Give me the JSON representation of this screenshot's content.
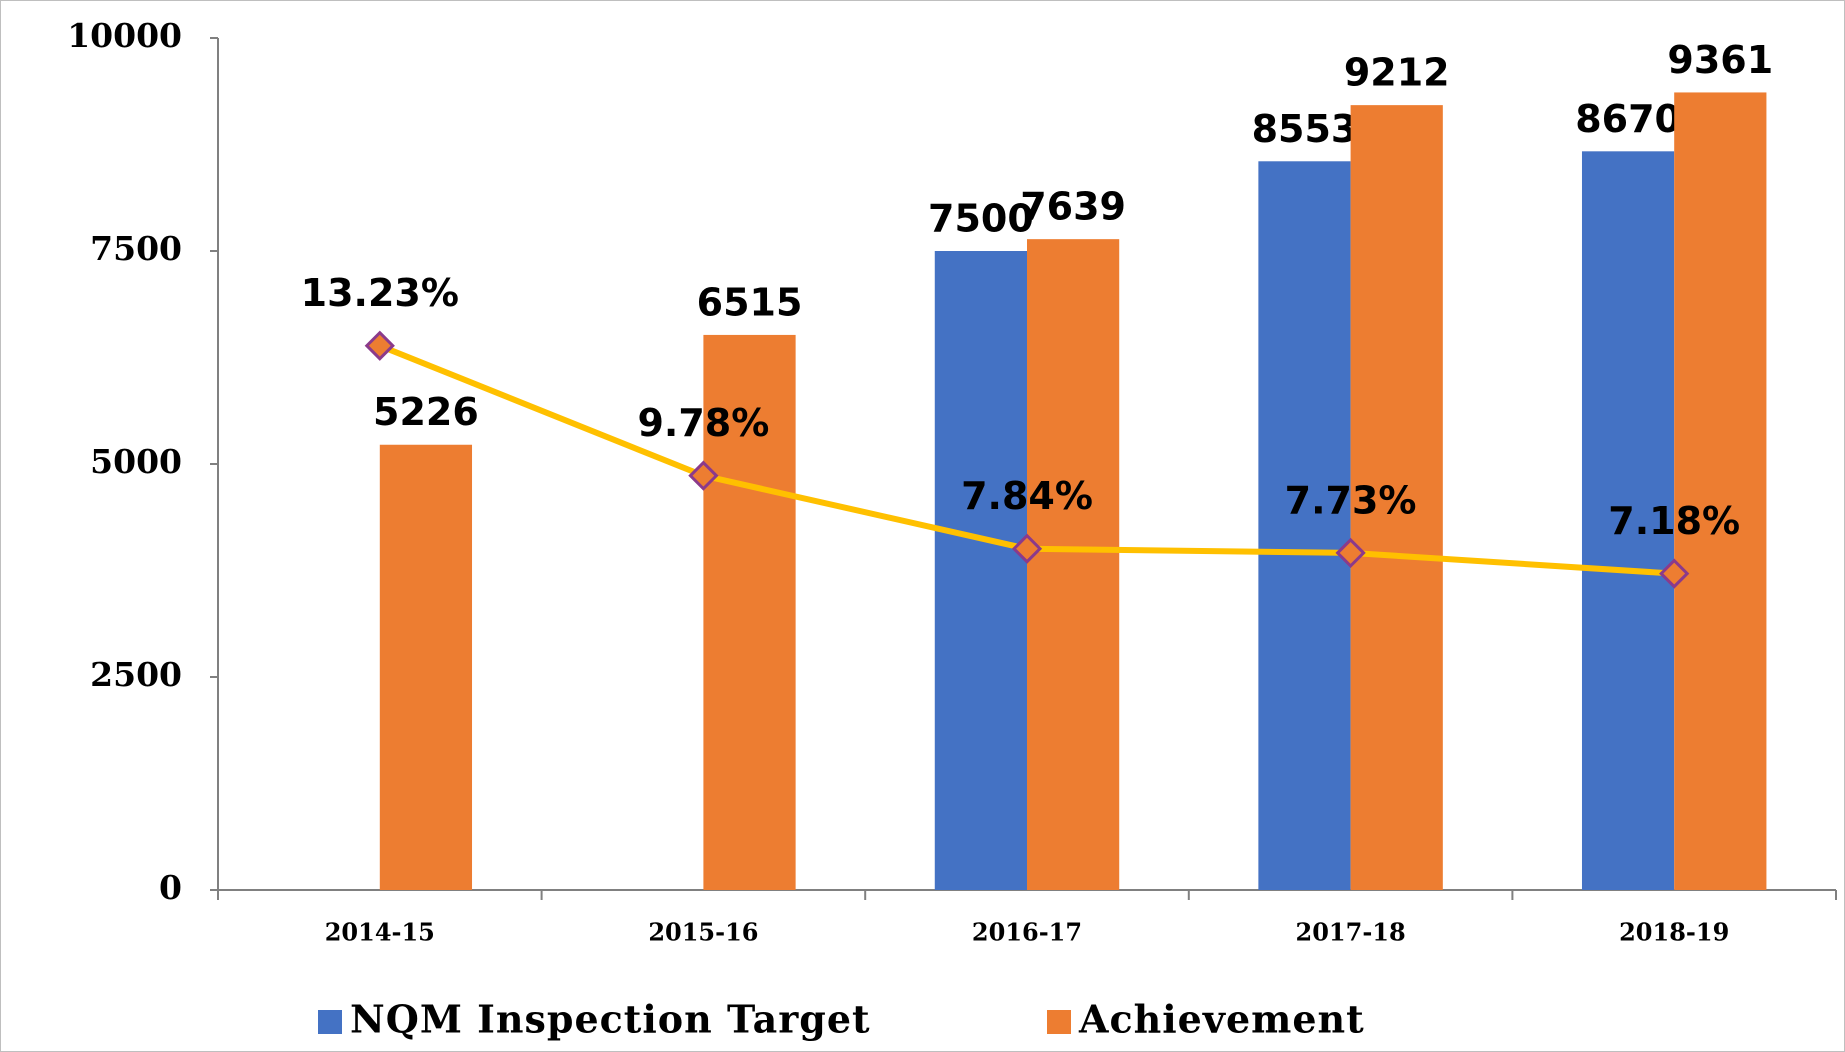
{
  "chart_data": {
    "type": "bar",
    "categories": [
      "2014-15",
      "2015-16",
      "2016-17",
      "2017-18",
      "2018-19"
    ],
    "series": [
      {
        "name": "NQM Inspection Target",
        "color": "#4472c4",
        "values": [
          null,
          null,
          7500,
          8553,
          8670
        ]
      },
      {
        "name": "Achievement",
        "color": "#ed7d31",
        "values": [
          5226,
          6515,
          7639,
          9212,
          9361
        ]
      },
      {
        "type": "line",
        "axis": "y2",
        "color": "#ffc000",
        "marker_color": "#ed7d31",
        "marker_edge": "#8b3a8b",
        "values": [
          13.23,
          9.78,
          7.84,
          7.73,
          7.18
        ],
        "value_labels": [
          "13.23%",
          "9.78%",
          "7.84%",
          "7.73%",
          "7.18%"
        ]
      }
    ],
    "ylim": [
      0,
      10000
    ],
    "yticks": [
      0,
      2500,
      5000,
      7500,
      10000
    ],
    "y2lim": [
      -1.22,
      21.4
    ],
    "legend": "bottom"
  }
}
